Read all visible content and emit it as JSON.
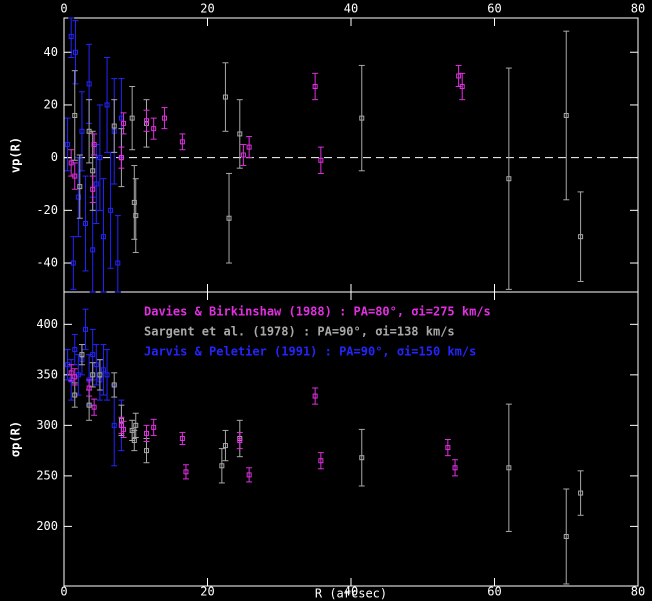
{
  "chart_data": [
    {
      "type": "errorbar",
      "ylabel": "vp(R)",
      "xlim": [
        0,
        80
      ],
      "xticks": [
        0,
        20,
        40,
        60,
        80
      ],
      "ylim": [
        -51,
        53
      ],
      "yticks": [
        -40,
        -20,
        0,
        20,
        40
      ],
      "reference_line": 0,
      "series": [
        {
          "color": "#2424ff",
          "x": [
            0.5,
            1,
            1.3,
            1.6,
            2,
            2.5,
            3,
            3.5,
            4,
            4.5,
            5,
            5.5,
            6,
            6.5,
            7,
            7.5,
            8
          ],
          "values": [
            5,
            46,
            -40,
            40,
            -15,
            10,
            -25,
            28,
            -35,
            -10,
            0,
            -30,
            20,
            -20,
            10,
            -40,
            15
          ],
          "errors": [
            10,
            8,
            10,
            12,
            15,
            15,
            18,
            15,
            20,
            15,
            20,
            22,
            18,
            22,
            20,
            18,
            15
          ]
        },
        {
          "color": "#a8a8a8",
          "x": [
            1.5,
            2.2,
            3.5,
            4,
            7,
            8,
            9.5,
            9.8,
            10,
            11.5,
            22.5,
            23,
            24.5,
            41.5,
            62,
            70,
            72
          ],
          "values": [
            16,
            -11,
            10,
            -5,
            12,
            0,
            15,
            -17,
            -22,
            13,
            23,
            -23,
            9,
            15,
            -8,
            16,
            -30
          ],
          "errors": [
            17,
            12,
            12,
            15,
            10,
            11,
            12,
            14,
            14,
            9,
            13,
            17,
            13,
            20,
            42,
            32,
            17
          ]
        },
        {
          "color": "#e030e0",
          "x": [
            1,
            1.5,
            4,
            4.2,
            8,
            8.3,
            11.5,
            12.5,
            14,
            16.5,
            25,
            25.8,
            35,
            35.8,
            55,
            55.5
          ],
          "values": [
            -2,
            -7,
            -12,
            5,
            0,
            13,
            14,
            11,
            15,
            6,
            1,
            4,
            27,
            -1,
            31,
            27
          ],
          "errors": [
            5,
            5,
            5,
            4,
            4,
            4,
            4,
            4,
            4,
            3,
            4,
            4,
            5,
            5,
            4,
            5
          ]
        }
      ]
    },
    {
      "type": "errorbar",
      "ylabel": "σp(R)",
      "xlabel": "R (arcsec)",
      "xlim": [
        0,
        80
      ],
      "xticks": [
        0,
        20,
        40,
        60,
        80
      ],
      "ylim": [
        141,
        432
      ],
      "yticks": [
        200,
        250,
        300,
        350,
        400
      ],
      "series": [
        {
          "name": "Jarvis & Peletier (1991) : PA=90°, σi=150 km/s",
          "color": "#2424ff",
          "x": [
            0.5,
            1,
            1.5,
            2,
            2.5,
            3,
            3.5,
            4,
            4.5,
            5,
            5.5,
            6,
            7,
            8
          ],
          "values": [
            360,
            345,
            375,
            350,
            365,
            395,
            345,
            370,
            360,
            345,
            355,
            350,
            300,
            300
          ],
          "errors": [
            15,
            20,
            15,
            20,
            15,
            20,
            25,
            25,
            20,
            20,
            25,
            25,
            40,
            25
          ]
        },
        {
          "name": "Sargent et al. (1978) : PA=90°, σi=138 km/s",
          "color": "#a8a8a8",
          "x": [
            1.5,
            2.5,
            3.5,
            4,
            5,
            7,
            8,
            9.5,
            9.8,
            10,
            11.5,
            22,
            22.5,
            24.5,
            41.5,
            62,
            70,
            72
          ],
          "values": [
            330,
            370,
            320,
            350,
            350,
            340,
            305,
            295,
            285,
            300,
            275,
            260,
            280,
            287,
            268,
            258,
            190,
            233
          ],
          "errors": [
            12,
            10,
            15,
            12,
            15,
            12,
            15,
            10,
            10,
            12,
            12,
            17,
            15,
            18,
            28,
            63,
            47,
            22
          ]
        },
        {
          "name": "Davies & Birkinshaw (1988) : PA=80°, σi=275 km/s",
          "color": "#e030e0",
          "x": [
            1,
            1.5,
            3.5,
            4.2,
            8,
            8.3,
            11.5,
            12.5,
            16.5,
            17,
            24.5,
            25.8,
            35,
            35.8,
            53.5,
            54.5
          ],
          "values": [
            352,
            348,
            337,
            318,
            300,
            296,
            292,
            298,
            287,
            254,
            285,
            251,
            329,
            265,
            278,
            258
          ],
          "errors": [
            8,
            8,
            8,
            8,
            8,
            8,
            8,
            8,
            6,
            7,
            8,
            7,
            8,
            8,
            8,
            8
          ]
        }
      ]
    }
  ]
}
